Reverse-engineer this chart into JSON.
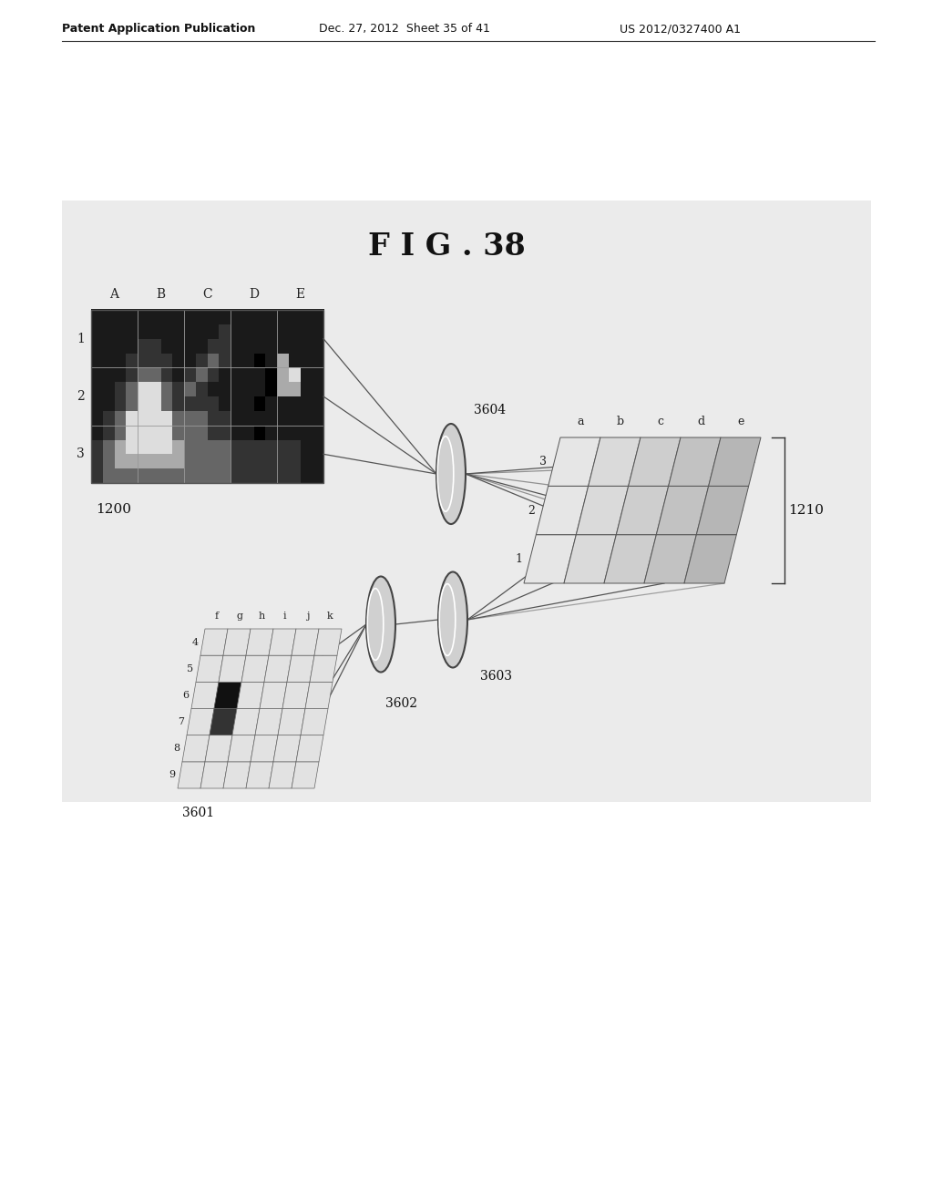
{
  "title": "F I G . 38",
  "header_left": "Patent Application Publication",
  "header_mid": "Dec. 27, 2012  Sheet 35 of 41",
  "header_right": "US 2012/0327400 A1",
  "bg_color": "#ffffff",
  "diagram_bg": "#e8e8e8",
  "label_1200": "1200",
  "label_1210": "1210",
  "label_3601": "3601",
  "label_3602": "3602",
  "label_3603": "3603",
  "label_3604": "3604",
  "col_labels_top": [
    "A",
    "B",
    "C",
    "D",
    "E"
  ],
  "row_labels_left": [
    "1",
    "2",
    "3"
  ],
  "col_labels_bottom": [
    "f",
    "g",
    "h",
    "i",
    "j",
    "k"
  ],
  "row_labels_bottom": [
    "4",
    "5",
    "6",
    "7",
    "8",
    "9"
  ],
  "grid_color": "#ffffff",
  "dark_cell_color": "#2a2a2a",
  "line_color": "#333333"
}
